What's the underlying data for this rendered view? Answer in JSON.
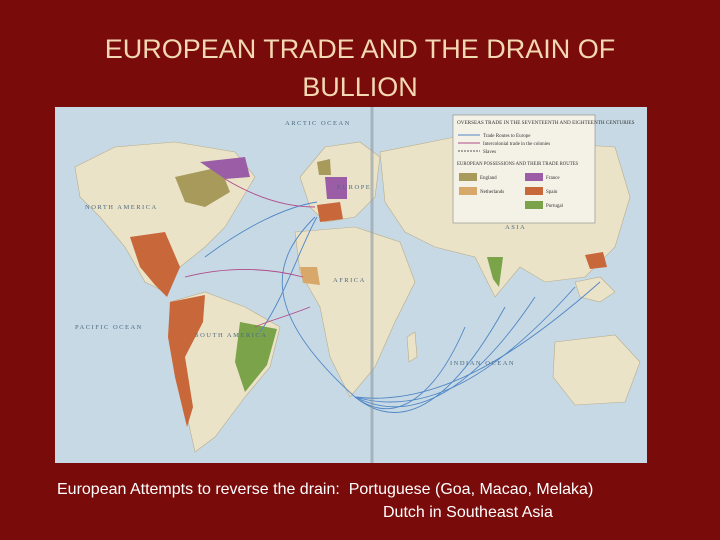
{
  "title": {
    "lines": [
      "EUROPEAN TRADE AND THE DRAIN OF",
      "BULLION"
    ]
  },
  "map": {
    "labels": [
      "ARCTIC OCEAN",
      "NORTH AMERICA",
      "SOUTH AMERICA",
      "PACIFIC OCEAN",
      "EUROPE",
      "AFRICA",
      "ASIA",
      "INDIAN OCEAN"
    ],
    "legend": {
      "title": "OVERSEAS TRADE IN THE SEVENTEENTH AND EIGHTEENTH CENTURIES",
      "routes": [
        "Trade Routes to Europe",
        "Intercolonial trade in the colonies",
        "Slaves"
      ],
      "possessions_title": "EUROPEAN POSSESSIONS AND THEIR TRADE ROUTES",
      "possessions": [
        "England",
        "France",
        "Netherlands",
        "Spain",
        "Portugal"
      ]
    }
  },
  "caption": {
    "lead": "European Attempts to reverse the drain:",
    "items": [
      "Portuguese (Goa, Macao, Melaka)",
      "Dutch in Southeast Asia"
    ]
  }
}
